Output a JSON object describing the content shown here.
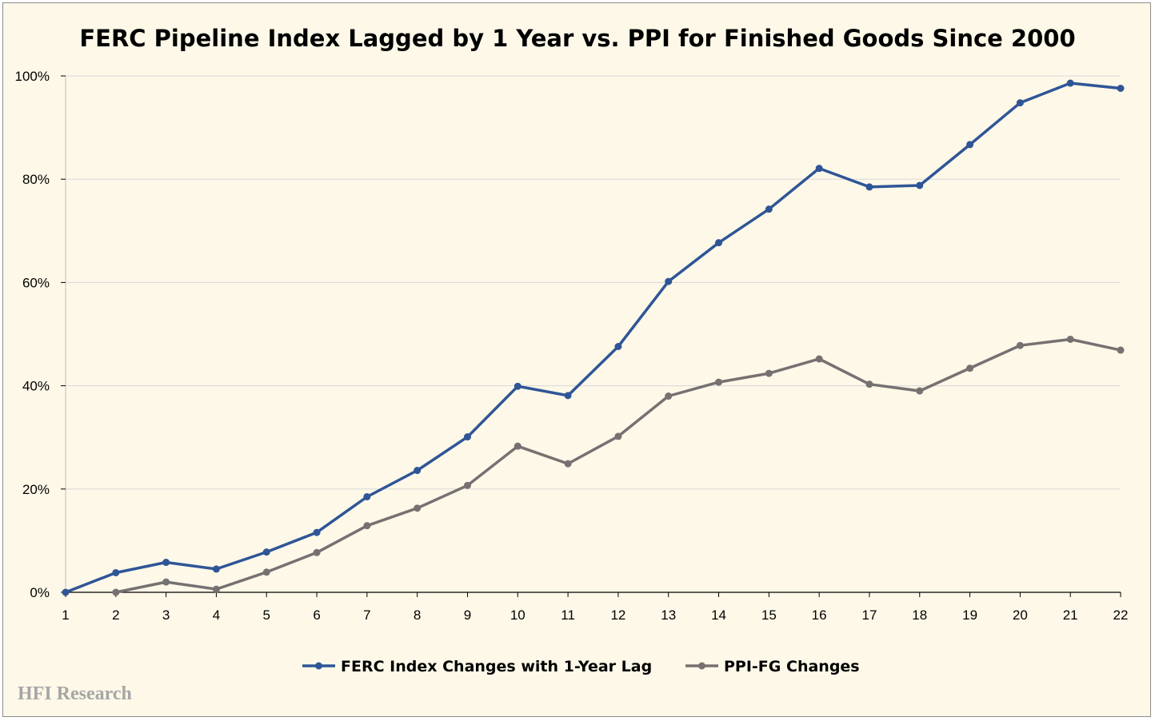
{
  "chart_data": {
    "type": "line",
    "title": "FERC Pipeline Index Lagged by 1 Year vs. PPI for Finished Goods Since 2000",
    "xlabel": "",
    "ylabel": "",
    "x": [
      1,
      2,
      3,
      4,
      5,
      6,
      7,
      8,
      9,
      10,
      11,
      12,
      13,
      14,
      15,
      16,
      17,
      18,
      19,
      20,
      21,
      22
    ],
    "x_tick_labels": [
      "1",
      "2",
      "3",
      "4",
      "5",
      "6",
      "7",
      "8",
      "9",
      "10",
      "11",
      "12",
      "13",
      "14",
      "15",
      "16",
      "17",
      "18",
      "19",
      "20",
      "21",
      "22"
    ],
    "ylim": [
      0,
      100
    ],
    "y_ticks": [
      0,
      20,
      40,
      60,
      80,
      100
    ],
    "y_tick_labels": [
      "0%",
      "20%",
      "40%",
      "60%",
      "80%",
      "100%"
    ],
    "grid": true,
    "legend_position": "bottom",
    "series": [
      {
        "name": "FERC Index Changes with 1-Year Lag",
        "color": "#2f5597",
        "marker": "circle",
        "values": [
          0,
          3.8,
          5.8,
          4.5,
          7.8,
          11.6,
          18.5,
          23.6,
          30.1,
          39.9,
          38.1,
          47.6,
          60.2,
          67.7,
          74.2,
          82.1,
          78.5,
          78.8,
          86.7,
          94.8,
          98.6,
          97.6
        ]
      },
      {
        "name": "PPI-FG Changes",
        "color": "#767171",
        "marker": "circle",
        "values": [
          null,
          0,
          2.0,
          0.6,
          3.9,
          7.7,
          12.9,
          16.3,
          20.7,
          28.3,
          24.9,
          30.2,
          38.0,
          40.7,
          42.4,
          45.2,
          40.3,
          39.0,
          43.4,
          47.8,
          49.0,
          46.9
        ]
      }
    ]
  },
  "watermark": "HFI Research"
}
